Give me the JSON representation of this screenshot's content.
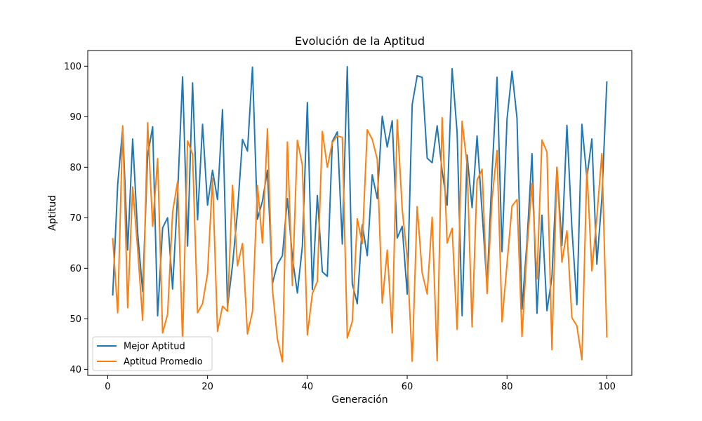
{
  "chart_data": {
    "type": "line",
    "title": "Evolución de la Aptitud",
    "xlabel": "Generación",
    "ylabel": "Aptitud",
    "xlim": [
      -4,
      105
    ],
    "ylim": [
      38.8,
      103.1
    ],
    "xticks": [
      0,
      20,
      40,
      60,
      80,
      100
    ],
    "yticks": [
      40,
      50,
      60,
      70,
      80,
      90,
      100
    ],
    "grid": false,
    "legend_position": "lower-left",
    "x": [
      1,
      2,
      3,
      4,
      5,
      6,
      7,
      8,
      9,
      10,
      11,
      12,
      13,
      14,
      15,
      16,
      17,
      18,
      19,
      20,
      21,
      22,
      23,
      24,
      25,
      26,
      27,
      28,
      29,
      30,
      31,
      32,
      33,
      34,
      35,
      36,
      37,
      38,
      39,
      40,
      41,
      42,
      43,
      44,
      45,
      46,
      47,
      48,
      49,
      50,
      51,
      52,
      53,
      54,
      55,
      56,
      57,
      58,
      59,
      60,
      61,
      62,
      63,
      64,
      65,
      66,
      67,
      68,
      69,
      70,
      71,
      72,
      73,
      74,
      75,
      76,
      77,
      78,
      79,
      80,
      81,
      82,
      83,
      84,
      85,
      86,
      87,
      88,
      89,
      90,
      91,
      92,
      93,
      94,
      95,
      96,
      97,
      98,
      99,
      100
    ],
    "series": [
      {
        "name": "Mejor Aptitud",
        "color": "#1f77b4",
        "values": [
          54.6,
          76.6,
          87.8,
          63.6,
          85.6,
          67.0,
          55.4,
          82.3,
          88.0,
          50.6,
          68.0,
          70.0,
          55.9,
          74.6,
          97.9,
          64.4,
          96.7,
          69.6,
          88.5,
          72.5,
          79.4,
          73.6,
          91.4,
          52.3,
          60.6,
          71.2,
          85.5,
          83.2,
          99.8,
          69.7,
          73.3,
          79.4,
          57.0,
          60.8,
          62.5,
          73.8,
          62.1,
          55.1,
          64.4,
          92.8,
          55.8,
          74.4,
          59.3,
          58.4,
          85.1,
          87.0,
          64.8,
          99.9,
          56.9,
          53.0,
          68.6,
          62.5,
          78.5,
          73.8,
          90.1,
          84.0,
          89.2,
          66.0,
          68.3,
          54.9,
          92.4,
          98.1,
          97.8,
          81.8,
          80.9,
          88.2,
          79.3,
          72.5,
          99.5,
          86.9,
          50.6,
          82.4,
          72.0,
          86.2,
          71.2,
          56.4,
          78.8,
          97.8,
          63.3,
          89.5,
          99.0,
          89.7,
          51.9,
          65.2,
          82.7,
          51.1,
          70.5,
          51.6,
          58.3,
          80.0,
          64.5,
          88.3,
          67.9,
          52.8,
          88.5,
          77.9,
          85.6,
          60.8,
          73.8,
          97.0
        ]
      },
      {
        "name": "Aptitud Promedio",
        "color": "#ff7f0e",
        "values": [
          66.0,
          51.2,
          88.2,
          52.2,
          76.1,
          63.8,
          49.7,
          88.8,
          68.3,
          81.7,
          47.2,
          50.9,
          71.1,
          77.2,
          45.6,
          85.2,
          82.6,
          51.2,
          53.0,
          59.0,
          77.8,
          47.5,
          52.5,
          51.5,
          76.4,
          60.5,
          64.9,
          47.0,
          51.4,
          76.4,
          65.0,
          87.6,
          55.8,
          46.0,
          41.5,
          85.0,
          56.6,
          85.3,
          80.4,
          46.8,
          55.0,
          57.4,
          87.1,
          80.0,
          84.9,
          86.2,
          85.9,
          46.2,
          49.5,
          69.8,
          64.9,
          87.4,
          85.5,
          81.6,
          53.1,
          63.6,
          47.2,
          89.4,
          71.7,
          62.1,
          41.6,
          72.2,
          59.1,
          54.9,
          70.1,
          41.7,
          89.8,
          65.0,
          67.9,
          47.9,
          89.1,
          80.5,
          48.4,
          77.4,
          79.6,
          55.0,
          73.7,
          83.3,
          49.4,
          60.9,
          72.3,
          73.6,
          46.5,
          63.8,
          76.8,
          57.9,
          85.4,
          83.0,
          43.9,
          80.0,
          61.2,
          67.4,
          50.2,
          48.6,
          41.9,
          79.7,
          59.5,
          70.1,
          82.7,
          46.3
        ]
      }
    ]
  }
}
